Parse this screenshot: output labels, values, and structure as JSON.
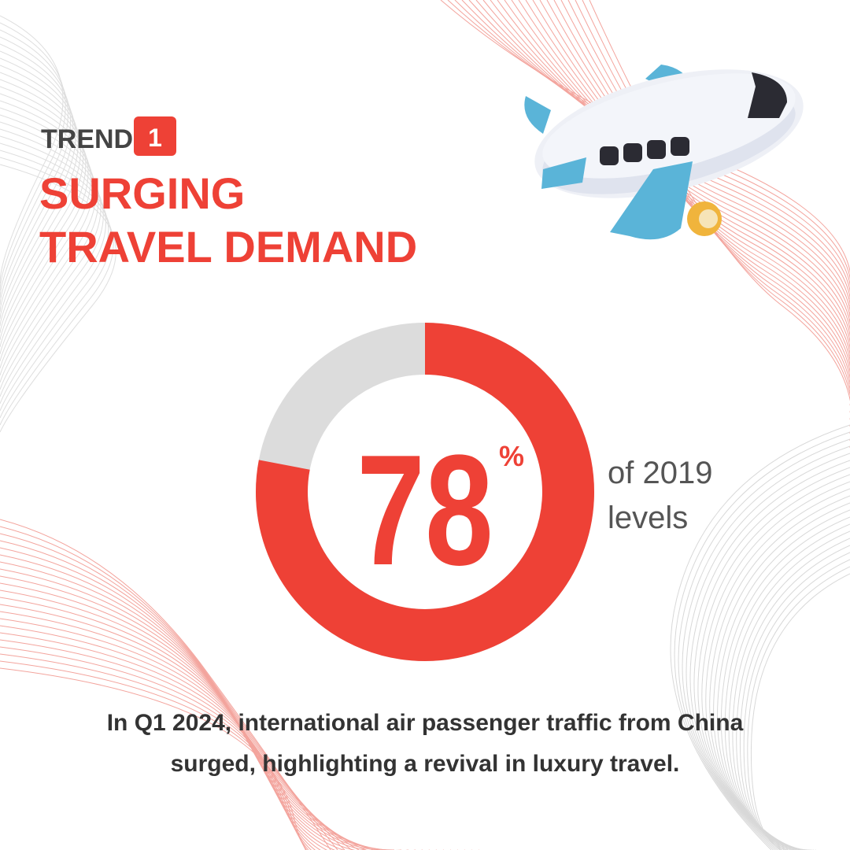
{
  "header": {
    "label": "TREND",
    "number": "1",
    "title_lines": [
      "SURGING",
      "TRAVEL DEMAND"
    ]
  },
  "chart_data": {
    "type": "donut",
    "values": [
      78
    ],
    "unit": "%",
    "color": "#ee4136",
    "track_color": "#dcdcdc",
    "note_lines": [
      "of 2019",
      "levels"
    ]
  },
  "caption_lines": [
    "In Q1 2024, international air passenger traffic from China",
    "surged, highlighting a revival in luxury travel."
  ]
}
